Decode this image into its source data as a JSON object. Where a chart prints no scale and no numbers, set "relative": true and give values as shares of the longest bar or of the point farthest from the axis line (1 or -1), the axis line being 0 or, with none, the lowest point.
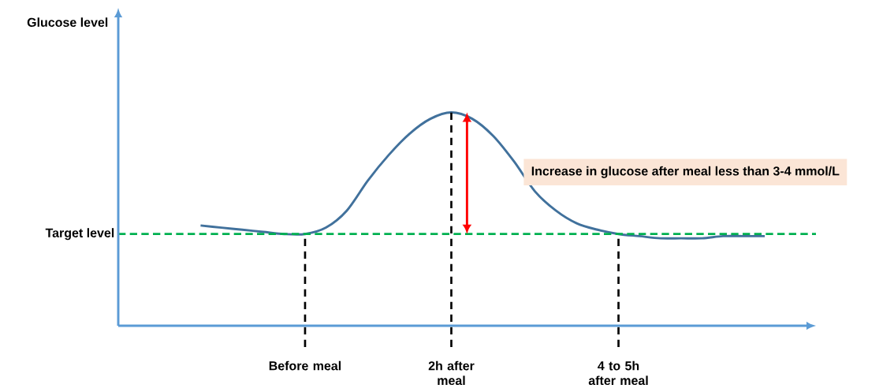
{
  "chart_data": {
    "type": "line",
    "relative": true,
    "categories": [
      null,
      null,
      null,
      null,
      null,
      "Before meal",
      null,
      null,
      null,
      null,
      null,
      null,
      "2h after meal",
      null,
      null,
      null,
      null,
      null,
      null,
      null,
      "4 to 5h after meal",
      null,
      null,
      null,
      null,
      null,
      null,
      null
    ],
    "series": [
      {
        "color": "#41719c",
        "values": [
          0.47,
          0.46,
          0.45,
          0.44,
          0.43,
          0.43,
          0.46,
          0.54,
          0.68,
          0.8,
          0.9,
          0.97,
          1,
          0.97,
          0.89,
          0.77,
          0.63,
          0.54,
          0.48,
          0.45,
          0.43,
          0.42,
          0.41,
          0.41,
          0.41,
          0.42,
          0.42,
          0.42
        ]
      }
    ],
    "ref_lines": [
      {
        "axis": "y",
        "value": 0.43,
        "label": "Target level",
        "color": "#00b050",
        "line_style": "dashed"
      }
    ],
    "annotations": [
      "Glucose level",
      "Increase in glucose after meal less than 3-4 mmol/L"
    ],
    "marker": "none",
    "line_style": "solid",
    "legend": false,
    "grid": "x"
  }
}
